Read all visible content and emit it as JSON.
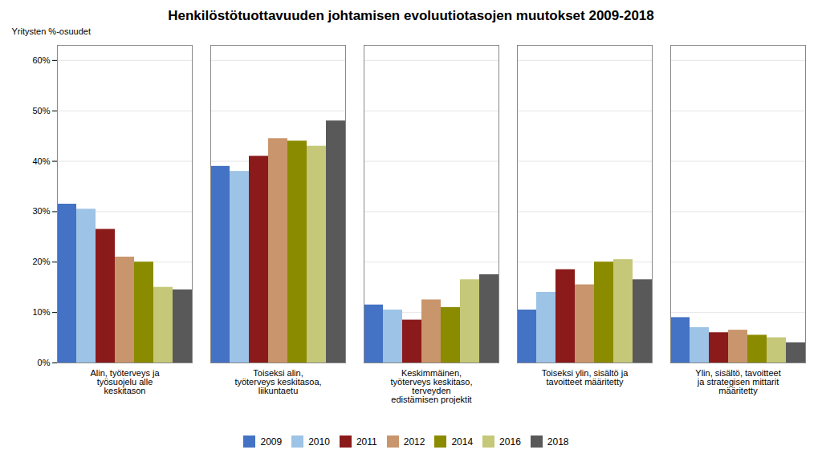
{
  "chart_data": {
    "type": "bar",
    "title": "Henkilöstötuottavuuden johtamisen evoluutiotasojen muutokset 2009-2018",
    "ylabel": "Yritysten %-osuudet",
    "categories": [
      "Alin, työterveys ja\ntyösuojelu alle\nkeskitason",
      "Toiseksi alin,\ntyöterveys keskitasoa,\nliikuntaetu",
      "Keskimmäinen,\ntyöterveys keskitaso,\nterveyden\nedistämisen projektit",
      "Toiseksi ylin, sisältö ja\ntavoitteet määritetty",
      "Ylin, sisältö, tavoitteet\nja strategisen mittarit\nmääritetty"
    ],
    "series": [
      {
        "name": "2009",
        "color": "#4472C4",
        "values": [
          31.5,
          39.0,
          11.5,
          10.5,
          9.0
        ]
      },
      {
        "name": "2010",
        "color": "#9DC3E6",
        "values": [
          30.5,
          38.0,
          10.5,
          14.0,
          7.0
        ]
      },
      {
        "name": "2011",
        "color": "#8B1A1A",
        "values": [
          26.5,
          41.0,
          8.5,
          18.5,
          6.0
        ]
      },
      {
        "name": "2012",
        "color": "#C9956C",
        "values": [
          21.0,
          44.5,
          12.5,
          15.5,
          6.5
        ]
      },
      {
        "name": "2014",
        "color": "#8B8B00",
        "values": [
          20.0,
          44.0,
          11.0,
          20.0,
          5.5
        ]
      },
      {
        "name": "2016",
        "color": "#C5C878",
        "values": [
          15.0,
          43.0,
          16.5,
          20.5,
          5.0
        ]
      },
      {
        "name": "2018",
        "color": "#595959",
        "values": [
          14.5,
          48.0,
          17.5,
          16.5,
          4.0
        ]
      }
    ],
    "ylim": [
      0,
      63
    ],
    "yticks": [
      {
        "value": 0,
        "label": "0%"
      },
      {
        "value": 10,
        "label": "10%"
      },
      {
        "value": 20,
        "label": "20%"
      },
      {
        "value": 30,
        "label": "30%"
      },
      {
        "value": 40,
        "label": "40%"
      },
      {
        "value": 50,
        "label": "50%"
      },
      {
        "value": 60,
        "label": "60%"
      }
    ],
    "grid": true,
    "legend": "bottom"
  }
}
